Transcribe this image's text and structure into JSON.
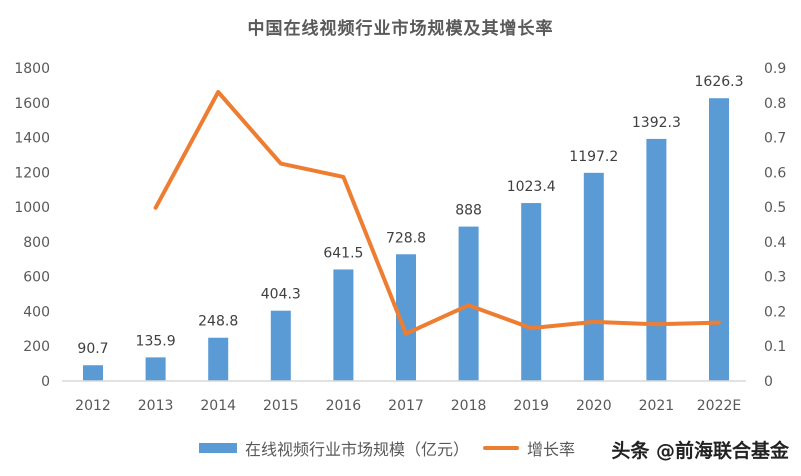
{
  "title": "中国在线视频行业市场规模及其增长率",
  "legend": {
    "bar_label": "在线视频行业市场规模（亿元）",
    "line_label": "增长率"
  },
  "watermark": "头条 @前海联合基金",
  "colors": {
    "bar": "#5b9bd5",
    "line": "#ed7d31",
    "axis": "#d9d9d9",
    "text": "#595959"
  },
  "chart_data": {
    "type": "bar+line",
    "title": "中国在线视频行业市场规模及其增长率",
    "categories": [
      "2012",
      "2013",
      "2014",
      "2015",
      "2016",
      "2017",
      "2018",
      "2019",
      "2020",
      "2021",
      "2022E"
    ],
    "series": [
      {
        "name": "在线视频行业市场规模（亿元）",
        "type": "bar",
        "axis": "left",
        "values": [
          90.7,
          135.9,
          248.8,
          404.3,
          641.5,
          728.8,
          888,
          1023.4,
          1197.2,
          1392.3,
          1626.3
        ],
        "labels": [
          "90.7",
          "135.9",
          "248.8",
          "404.3",
          "641.5",
          "728.8",
          "888",
          "1023.4",
          "1197.2",
          "1392.3",
          "1626.3"
        ]
      },
      {
        "name": "增长率",
        "type": "line",
        "axis": "right",
        "values": [
          null,
          0.498,
          0.831,
          0.625,
          0.587,
          0.136,
          0.218,
          0.152,
          0.17,
          0.163,
          0.168
        ]
      }
    ],
    "left_axis": {
      "ticks": [
        "0",
        "200",
        "400",
        "600",
        "800",
        "1000",
        "1200",
        "1400",
        "1600",
        "1800"
      ],
      "ylim": [
        0,
        1800
      ]
    },
    "right_axis": {
      "ticks": [
        "0",
        "0.1",
        "0.2",
        "0.3",
        "0.4",
        "0.5",
        "0.6",
        "0.7",
        "0.8",
        "0.9"
      ],
      "ylim": [
        0,
        0.9
      ]
    },
    "grid": false,
    "legend_position": "bottom"
  }
}
